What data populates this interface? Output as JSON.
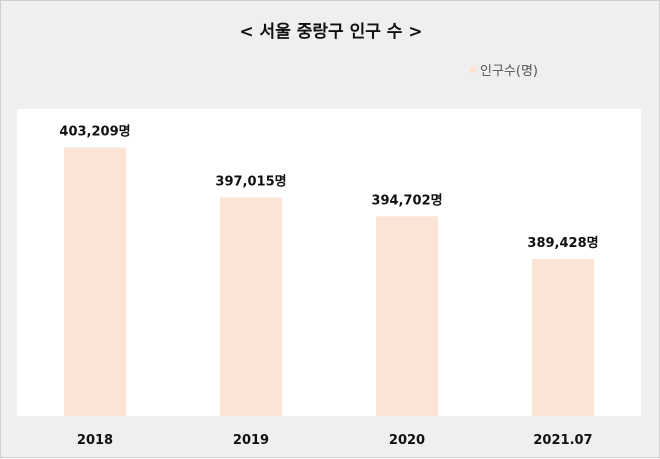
{
  "title": "< 서울 중랑구 인구 수 >",
  "legend": {
    "label": "인구수(명)"
  },
  "colors": {
    "bar": "#fbe4d6",
    "background": "#efefef",
    "plot_background": "#ffffff"
  },
  "chart_data": {
    "type": "bar",
    "title": "< 서울 중랑구 인구 수 >",
    "categories": [
      "2018",
      "2019",
      "2020",
      "2021.07"
    ],
    "series": [
      {
        "name": "인구수(명)",
        "values": [
          403209,
          397015,
          394702,
          389428
        ]
      }
    ],
    "data_labels": [
      "403,209명",
      "397,015명",
      "394,702명",
      "389,428명"
    ],
    "ylim": [
      370000,
      405000
    ],
    "grid": false,
    "legend_position": "top-right"
  }
}
